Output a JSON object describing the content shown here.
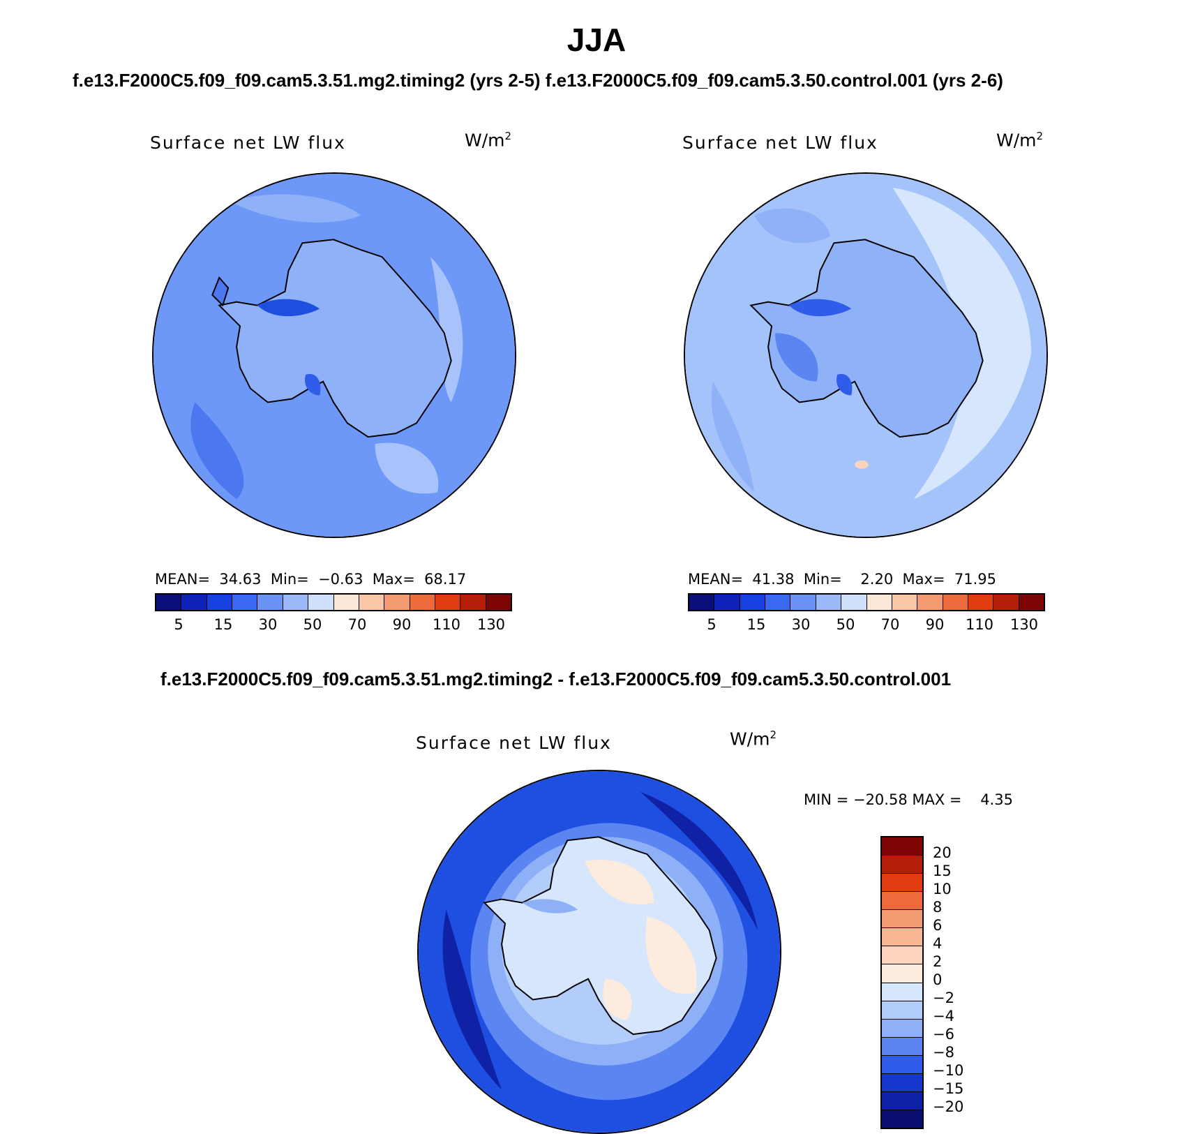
{
  "figure": {
    "season": "JJA",
    "case_line": "f.e13.F2000C5.f09_f09.cam5.3.51.mg2.timing2 (yrs 2-5)   f.e13.F2000C5.f09_f09.cam5.3.50.control.001 (yrs 2-6)",
    "diff_line": "f.e13.F2000C5.f09_f09.cam5.3.51.mg2.timing2 - f.e13.F2000C5.f09_f09.cam5.3.50.control.001"
  },
  "map_data": {
    "projection": "south polar stereographic",
    "region": "Antarctica / Southern Ocean",
    "panels": [
      {
        "id": "test",
        "variable": "Surface net LW flux",
        "units_base": "W/m",
        "units_exp": "2",
        "stats": "MEAN=  34.63  Min=  −0.63  Max=  68.17",
        "mean": 34.63,
        "min": -0.63,
        "max": 68.17,
        "field_color": "#6d98f7"
      },
      {
        "id": "control",
        "variable": "Surface net LW flux",
        "units_base": "W/m",
        "units_exp": "2",
        "stats": "MEAN=  41.38  Min=    2.20  Max=  71.95",
        "mean": 41.38,
        "min": 2.2,
        "max": 71.95,
        "field_color": "#a5c3fb"
      },
      {
        "id": "difference",
        "variable": "Surface net LW flux",
        "units_base": "W/m",
        "units_exp": "2",
        "stats": "MIN = −20.58 MAX =    4.35",
        "min": -20.58,
        "max": 4.35,
        "field_color": "#1f4fe0"
      }
    ]
  },
  "colorbars": {
    "abs": {
      "labels": [
        "5",
        "15",
        "30",
        "50",
        "70",
        "90",
        "110",
        "130"
      ],
      "colors": [
        "#0a0e7a",
        "#0f22b8",
        "#1740e0",
        "#3a68f0",
        "#6a93f5",
        "#9cbaf8",
        "#cfe0fb",
        "#fde8d7",
        "#f9c6a8",
        "#f39a72",
        "#ec6a3c",
        "#df3c10",
        "#b51f0a",
        "#7d0505"
      ]
    },
    "diff": {
      "labels": [
        "20",
        "15",
        "10",
        "8",
        "6",
        "4",
        "2",
        "0",
        "−2",
        "−4",
        "−6",
        "−8",
        "−10",
        "−15",
        "−20"
      ],
      "colors": [
        "#7d0505",
        "#b51f0a",
        "#df3c10",
        "#ec6a3c",
        "#f39a72",
        "#f9b793",
        "#fcd3bd",
        "#fdebdd",
        "#d6e6fc",
        "#b3cdfa",
        "#8db0f6",
        "#5b86f1",
        "#2f5ce8",
        "#1738cc",
        "#0f22a6",
        "#0a0e6e"
      ]
    }
  }
}
